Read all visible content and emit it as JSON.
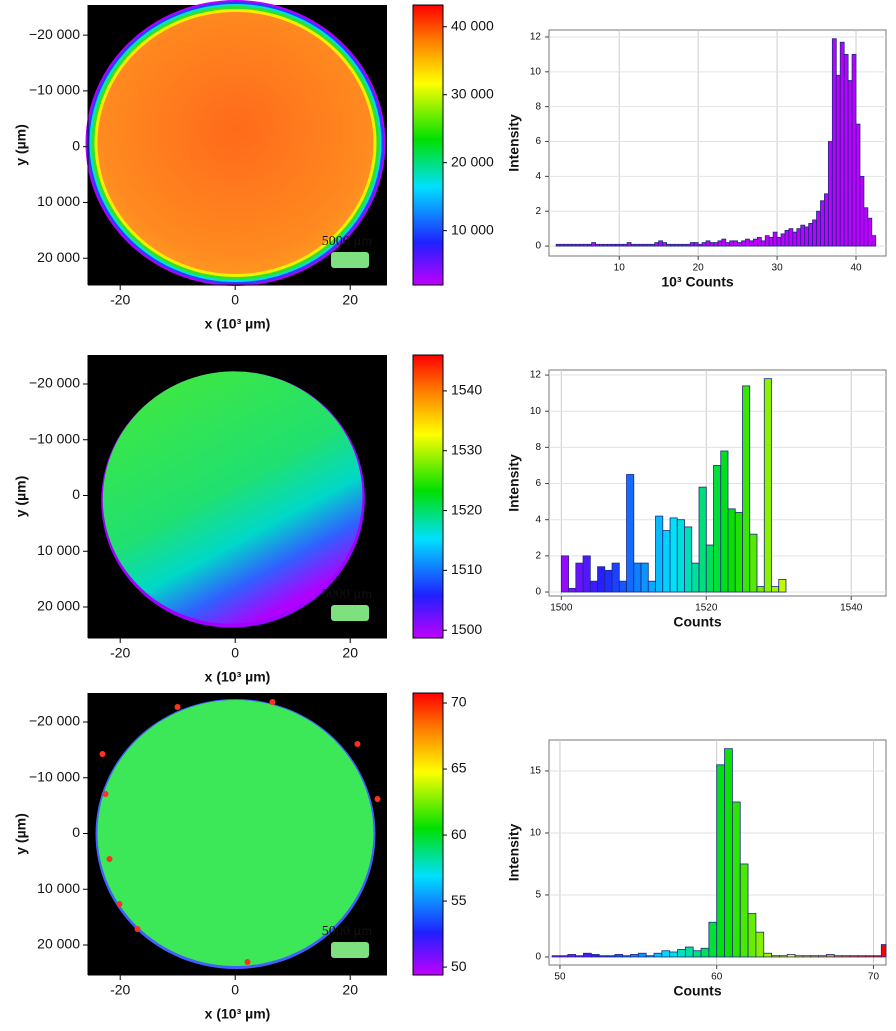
{
  "chart_data": [
    {
      "type": "heatmap",
      "xlabel": "x (10³ µm)",
      "ylabel": "y (µm)",
      "annotation": "5000 µm",
      "xlim": [
        -25.6,
        26.4
      ],
      "xticks": [
        -20,
        0,
        20
      ],
      "ylim": [
        -25400,
        24800
      ],
      "yticks": [
        {
          "value": -20000,
          "label": "−20 000"
        },
        {
          "value": -10000,
          "label": "−10 000"
        },
        0,
        {
          "value": 10000,
          "label": "10 000"
        },
        {
          "value": 20000,
          "label": "20 000"
        }
      ],
      "colorbar_lim": [
        2000,
        43200
      ],
      "colorbar_ticks": [
        {
          "value": 40000,
          "label": "40 000"
        },
        {
          "value": 30000,
          "label": "30 000"
        },
        {
          "value": 20000,
          "label": "20 000"
        },
        {
          "value": 10000,
          "label": "10 000"
        }
      ]
    },
    {
      "type": "histogram",
      "xlabel": "10³ Counts",
      "ylabel": "Intensity",
      "grid": true,
      "xlim": [
        1.1,
        43.8
      ],
      "xticks": [
        10,
        20,
        30,
        40
      ],
      "ylim": [
        -0.57,
        12.4
      ],
      "yticks": [
        0,
        2,
        4,
        6,
        8,
        10,
        12
      ],
      "bins": [
        2,
        2.5,
        3,
        3.5,
        4,
        4.5,
        5,
        5.5,
        6,
        6.5,
        7,
        7.5,
        8,
        8.5,
        9,
        9.5,
        10,
        10.5,
        11,
        11.5,
        12,
        12.5,
        13,
        13.5,
        14,
        14.5,
        15,
        15.5,
        16,
        16.5,
        17,
        17.5,
        18,
        18.5,
        19,
        19.5,
        20,
        20.5,
        21,
        21.5,
        22,
        22.5,
        23,
        23.5,
        24,
        24.5,
        25,
        25.5,
        26,
        26.5,
        27,
        27.5,
        28,
        28.5,
        29,
        29.5,
        30,
        30.5,
        31,
        31.5,
        32,
        32.5,
        33,
        33.5,
        34,
        34.5,
        35,
        35.5,
        36,
        36.5,
        37,
        37.5,
        38,
        38.5,
        39,
        39.5,
        40,
        40.5,
        41,
        41.5,
        42,
        42.5
      ],
      "values": [
        0.1,
        0.1,
        0.1,
        0.1,
        0.1,
        0.1,
        0.1,
        0.1,
        0.1,
        0.2,
        0.1,
        0.1,
        0.1,
        0.1,
        0.1,
        0.1,
        0.1,
        0.1,
        0.2,
        0.1,
        0.1,
        0.1,
        0.1,
        0.1,
        0.1,
        0.2,
        0.3,
        0.2,
        0.1,
        0.1,
        0.1,
        0.1,
        0.1,
        0.1,
        0.2,
        0.2,
        0.1,
        0.2,
        0.3,
        0.2,
        0.2,
        0.3,
        0.4,
        0.2,
        0.3,
        0.3,
        0.2,
        0.3,
        0.4,
        0.3,
        0.4,
        0.5,
        0.3,
        0.6,
        0.5,
        0.8,
        0.5,
        0.7,
        0.9,
        1.0,
        0.8,
        1.0,
        1.2,
        1.1,
        1.3,
        1.5,
        2.0,
        2.6,
        3.0,
        6.0,
        11.9,
        9.8,
        11.7,
        11.0,
        9.5,
        11.0,
        7.0,
        4.0,
        2.2,
        1.6,
        0.6
      ]
    },
    {
      "type": "heatmap",
      "xlabel": "x (10³ µm)",
      "ylabel": "y (µm)",
      "annotation": "5000 µm",
      "xlim": [
        -25.6,
        26.4
      ],
      "xticks": [
        -20,
        0,
        20
      ],
      "ylim": [
        -25200,
        25560
      ],
      "yticks": [
        {
          "value": -20000,
          "label": "−20 000"
        },
        {
          "value": -10000,
          "label": "−10 000"
        },
        0,
        {
          "value": 10000,
          "label": "10 000"
        },
        {
          "value": 20000,
          "label": "20 000"
        }
      ],
      "colorbar_lim": [
        1498.7,
        1546
      ],
      "colorbar_ticks": [
        1540,
        1530,
        1520,
        1510,
        1500
      ]
    },
    {
      "type": "histogram",
      "xlabel": "Counts",
      "ylabel": "Intensity",
      "grid": true,
      "xlim": [
        1498.3,
        1544.8
      ],
      "xticks": [
        1500,
        1520,
        1540
      ],
      "ylim": [
        -0.22,
        12.28
      ],
      "yticks": [
        0,
        2,
        4,
        6,
        8,
        10,
        12
      ],
      "bins": [
        1500,
        1501,
        1502,
        1503,
        1504,
        1505,
        1506,
        1507,
        1508,
        1509,
        1510,
        1511,
        1512,
        1513,
        1514,
        1515,
        1516,
        1517,
        1518,
        1519,
        1520,
        1521,
        1522,
        1523,
        1524,
        1525,
        1526,
        1527,
        1528,
        1529,
        1530,
        1531
      ],
      "values": [
        2.0,
        0.2,
        1.6,
        2.0,
        0.6,
        1.4,
        1.2,
        1.6,
        0.6,
        6.5,
        1.6,
        1.6,
        0.6,
        4.2,
        3.4,
        4.1,
        4.0,
        3.6,
        1.6,
        5.8,
        2.6,
        7.0,
        7.8,
        4.6,
        4.4,
        11.4,
        3.2,
        0.3,
        11.8,
        0.3,
        0.7
      ]
    },
    {
      "type": "heatmap",
      "xlabel": "x (10³ µm)",
      "ylabel": "y (µm)",
      "annotation": "5000 µm",
      "xlim": [
        -25.6,
        26.4
      ],
      "xticks": [
        -20,
        0,
        20
      ],
      "ylim": [
        -25200,
        25380
      ],
      "yticks": [
        {
          "value": -20000,
          "label": "−20 000"
        },
        {
          "value": -10000,
          "label": "−10 000"
        },
        0,
        {
          "value": 10000,
          "label": "10 000"
        },
        {
          "value": 20000,
          "label": "20 000"
        }
      ],
      "colorbar_lim": [
        49.4,
        70.76
      ],
      "colorbar_ticks": [
        70,
        65,
        60,
        55,
        50
      ]
    },
    {
      "type": "histogram",
      "xlabel": "Counts",
      "ylabel": "Intensity",
      "grid": true,
      "xlim": [
        49.3,
        70.8
      ],
      "xticks": [
        50,
        60,
        70
      ],
      "ylim": [
        -0.65,
        17.5
      ],
      "yticks": [
        0,
        5,
        10,
        15
      ],
      "bins": [
        49.5,
        50,
        50.5,
        51,
        51.5,
        52,
        52.5,
        53,
        53.5,
        54,
        54.5,
        55,
        55.5,
        56,
        56.5,
        57,
        57.5,
        58,
        58.5,
        59,
        59.5,
        60,
        60.5,
        61,
        61.5,
        62,
        62.5,
        63,
        63.5,
        64,
        64.5,
        65,
        65.5,
        66,
        66.5,
        67,
        67.5,
        68,
        68.5,
        69,
        69.5,
        70,
        70.5,
        71
      ],
      "values": [
        0.1,
        0.1,
        0.2,
        0.1,
        0.3,
        0.2,
        0.1,
        0.1,
        0.2,
        0.1,
        0.2,
        0.3,
        0.1,
        0.3,
        0.5,
        0.4,
        0.6,
        0.8,
        0.5,
        0.7,
        2.8,
        15.5,
        16.8,
        12.5,
        7.5,
        3.5,
        2.0,
        0.3,
        0.1,
        0.1,
        0.2,
        0.1,
        0.1,
        0.1,
        0.1,
        0.2,
        0.1,
        0.1,
        0.1,
        0.1,
        0.1,
        0.1,
        1.0
      ]
    }
  ]
}
